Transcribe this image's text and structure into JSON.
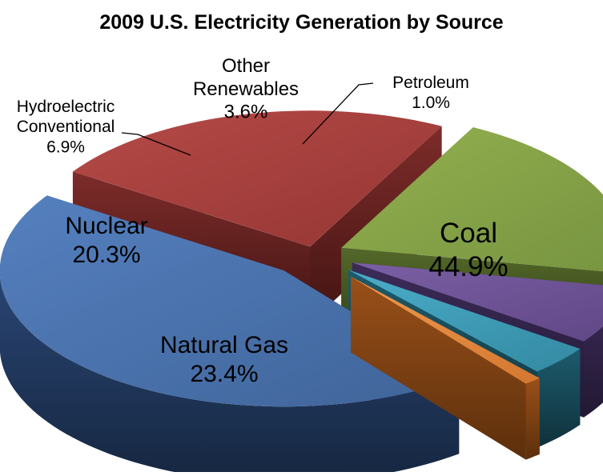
{
  "chart_data": {
    "type": "pie",
    "title": "2009 U.S. Electricity Generation by Source",
    "three_d": true,
    "exploded": true,
    "legend": "none",
    "slices": [
      {
        "name": "Coal",
        "value": 44.9,
        "label": "44.9%",
        "color": "#4a72aa",
        "side_color": "#1f3557"
      },
      {
        "name": "Natural Gas",
        "value": 23.4,
        "label": "23.4%",
        "color": "#a8403e",
        "side_color": "#5a1d1b"
      },
      {
        "name": "Nuclear",
        "value": 20.3,
        "label": "20.3%",
        "color": "#86a345",
        "side_color": "#3f5219"
      },
      {
        "name": "Hydroelectric Conventional",
        "value": 6.9,
        "label": "6.9%",
        "color": "#6e5396",
        "side_color": "#2d1f42"
      },
      {
        "name": "Other Renewables",
        "value": 3.6,
        "label": "3.6%",
        "color": "#3c9ab6",
        "side_color": "#154654"
      },
      {
        "name": "Petroleum",
        "value": 1.0,
        "label": "1.0%",
        "color": "#e7893a",
        "side_color": "#7a3f12"
      }
    ]
  }
}
